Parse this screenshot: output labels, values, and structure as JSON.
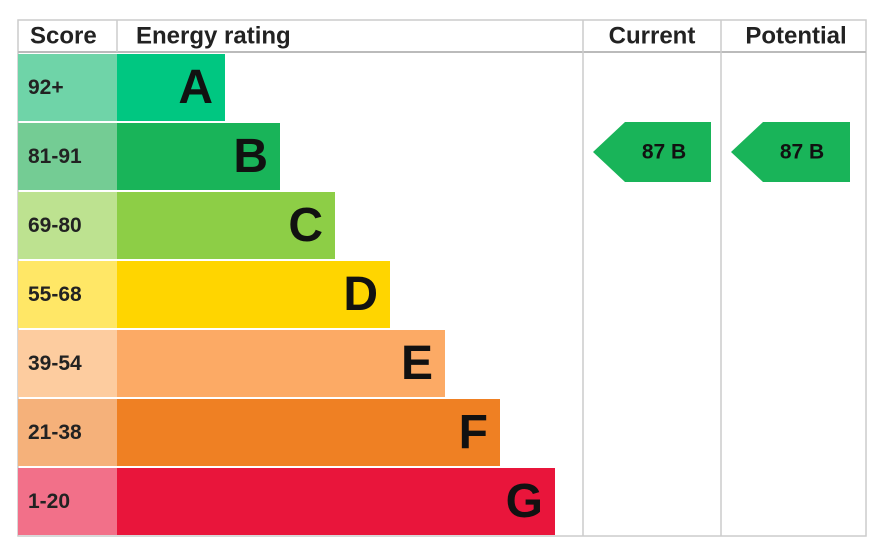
{
  "header": {
    "score": "Score",
    "energy_rating": "Energy rating",
    "current": "Current",
    "potential": "Potential"
  },
  "bands": [
    {
      "score": "92+",
      "rating": "A"
    },
    {
      "score": "81-91",
      "rating": "B"
    },
    {
      "score": "69-80",
      "rating": "C"
    },
    {
      "score": "55-68",
      "rating": "D"
    },
    {
      "score": "39-54",
      "rating": "E"
    },
    {
      "score": "21-38",
      "rating": "F"
    },
    {
      "score": "1-20",
      "rating": "G"
    }
  ],
  "current": {
    "label": "87 B"
  },
  "potential": {
    "label": "87 B"
  }
}
